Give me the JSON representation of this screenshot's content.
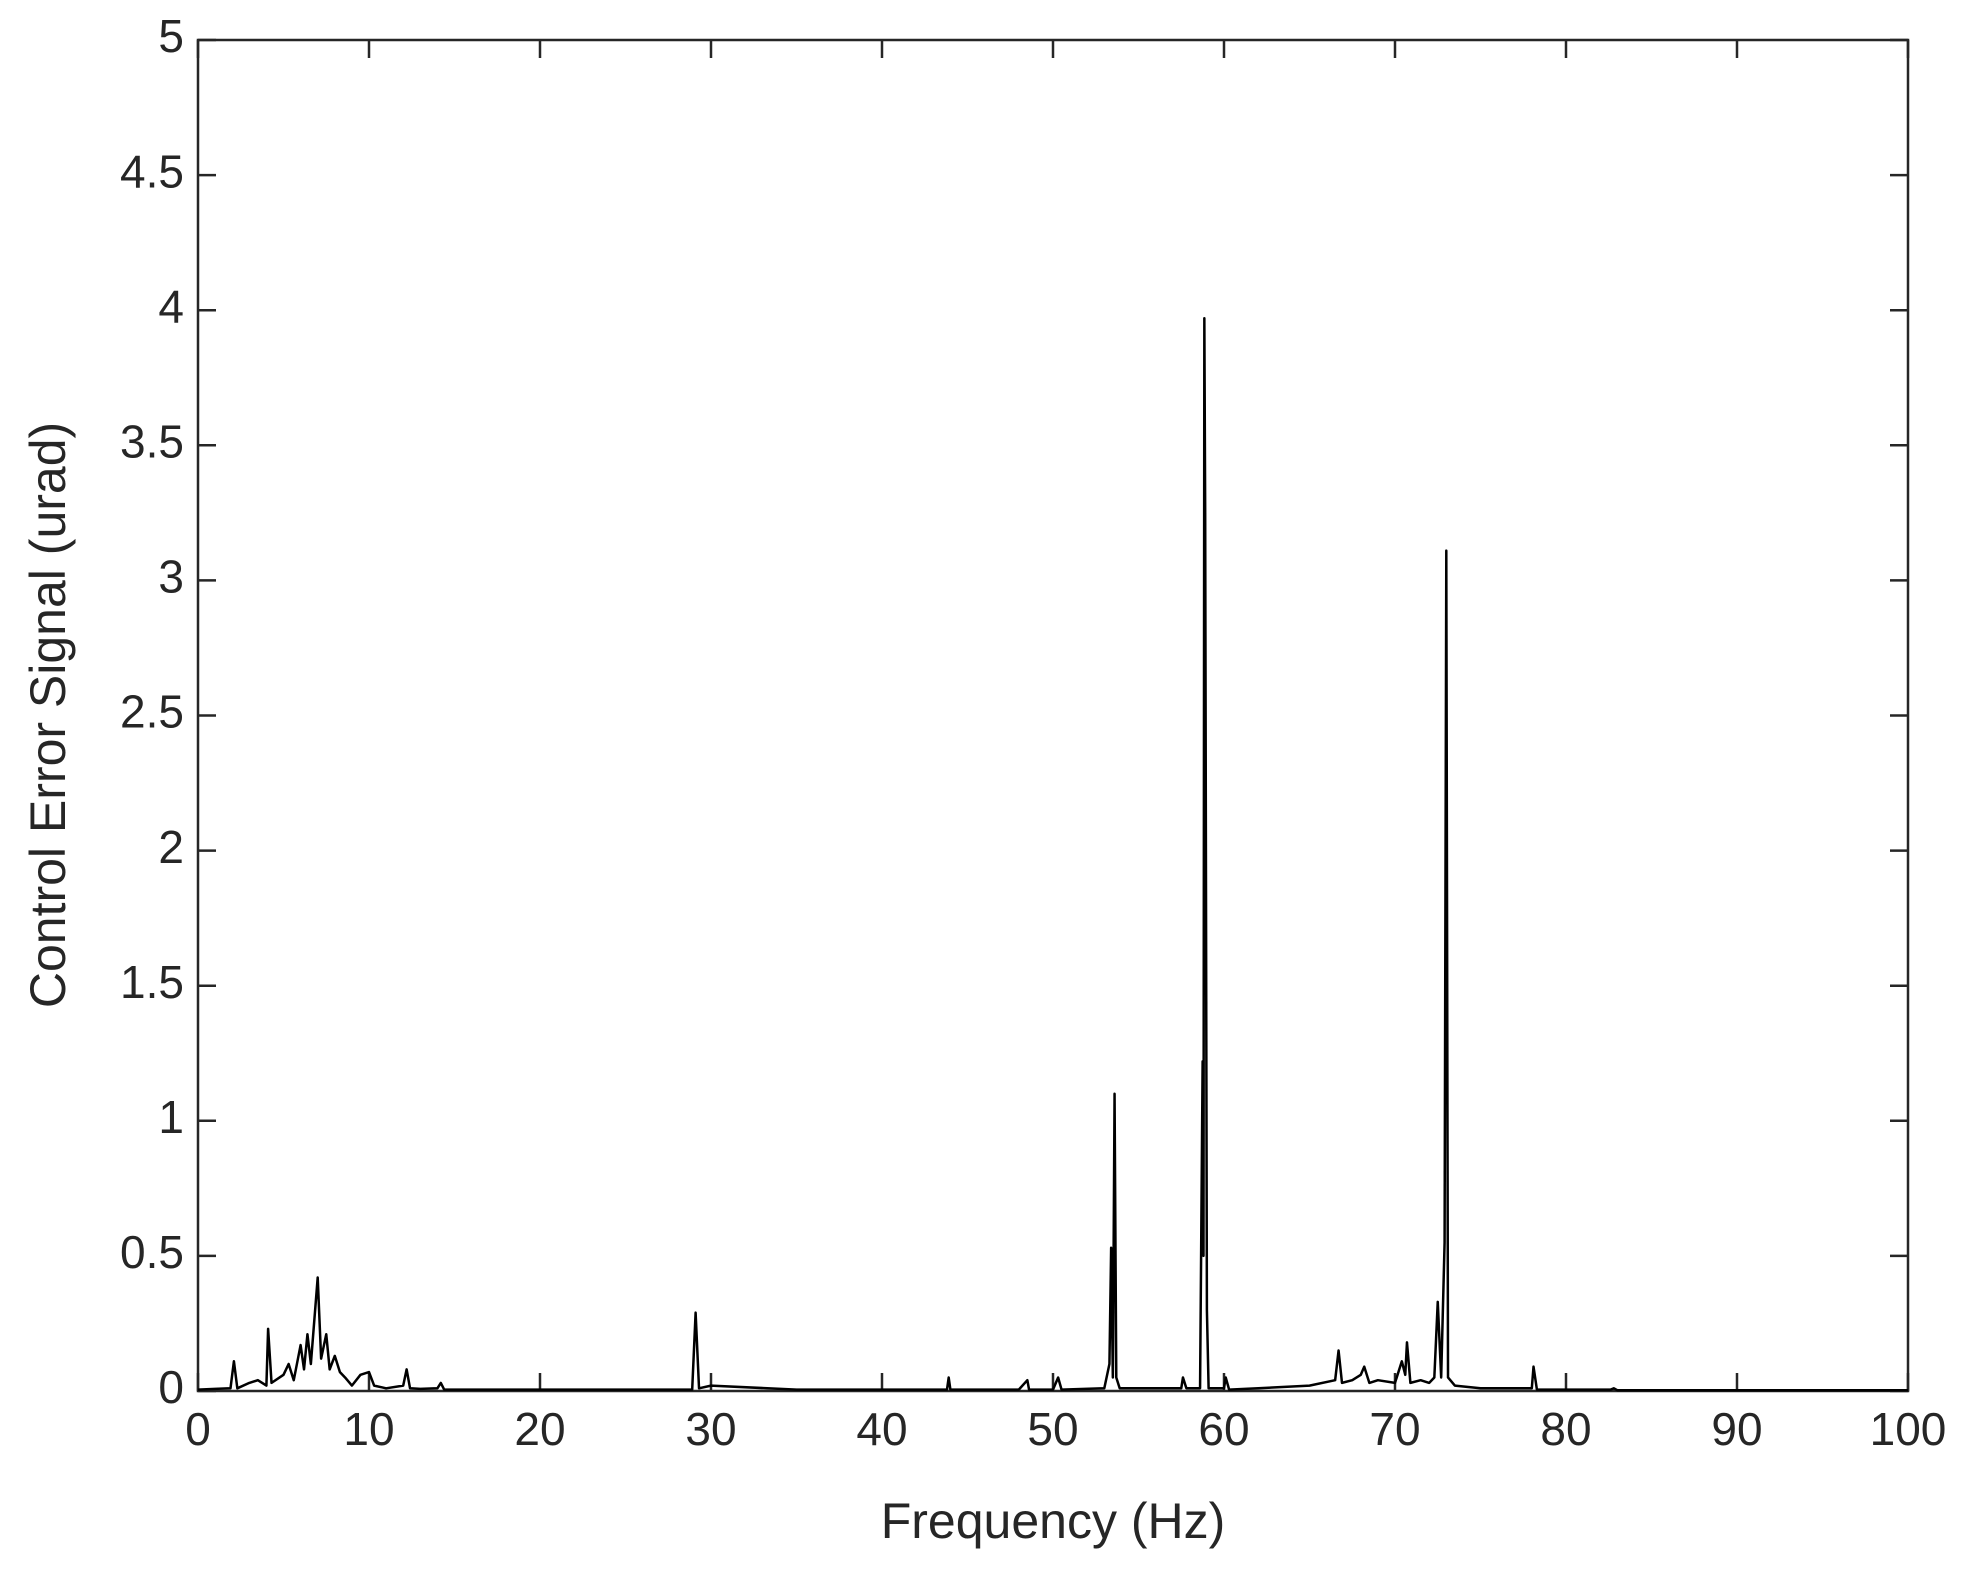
{
  "chart_data": {
    "type": "line",
    "xlabel": "Frequency (Hz)",
    "ylabel": "Control Error Signal (urad)",
    "xlim": [
      0,
      100
    ],
    "xticks": [
      0,
      10,
      20,
      30,
      40,
      50,
      60,
      70,
      80,
      90,
      100
    ],
    "ylim": [
      0,
      5
    ],
    "yticks": [
      0,
      0.5,
      1,
      1.5,
      2,
      2.5,
      3,
      3.5,
      4,
      4.5,
      5
    ],
    "grid": false,
    "series": [
      {
        "color": "#000000",
        "x": [
          0,
          1,
          1.9,
          2.1,
          2.3,
          3,
          3.5,
          4,
          4.1,
          4.3,
          5,
          5.3,
          5.6,
          6,
          6.2,
          6.4,
          6.6,
          7,
          7.2,
          7.5,
          7.7,
          8,
          8.3,
          8.6,
          9,
          9.5,
          10,
          10.3,
          11,
          12,
          12.2,
          12.4,
          13,
          14,
          14.2,
          14.4,
          20,
          25,
          28.9,
          29.1,
          29.3,
          30,
          35,
          40,
          43.8,
          43.9,
          44,
          48,
          48.5,
          48.6,
          50,
          50.3,
          50.5,
          53,
          53.3,
          53.4,
          53.5,
          53.6,
          53.7,
          53.9,
          56,
          57.5,
          57.6,
          57.8,
          58.6,
          58.75,
          58.8,
          58.85,
          58.9,
          59,
          59.1,
          60,
          60.1,
          60.3,
          62,
          65,
          66.5,
          66.7,
          66.9,
          67.5,
          68,
          68.2,
          68.5,
          69,
          70,
          70.4,
          70.6,
          70.7,
          70.9,
          71.5,
          72,
          72.3,
          72.5,
          72.7,
          72.9,
          73,
          73.1,
          73.5,
          75,
          78,
          78.1,
          78.3,
          80,
          82.6,
          82.8,
          83,
          90,
          100
        ],
        "values": [
          0.005,
          0.008,
          0.01,
          0.11,
          0.01,
          0.03,
          0.04,
          0.02,
          0.23,
          0.03,
          0.06,
          0.1,
          0.04,
          0.17,
          0.08,
          0.21,
          0.1,
          0.42,
          0.12,
          0.21,
          0.08,
          0.13,
          0.07,
          0.05,
          0.02,
          0.06,
          0.07,
          0.02,
          0.01,
          0.02,
          0.08,
          0.01,
          0.008,
          0.01,
          0.03,
          0.005,
          0.005,
          0.005,
          0.005,
          0.29,
          0.01,
          0.02,
          0.005,
          0.005,
          0.005,
          0.05,
          0.005,
          0.005,
          0.04,
          0.005,
          0.005,
          0.05,
          0.005,
          0.01,
          0.1,
          0.53,
          0.05,
          1.1,
          0.05,
          0.01,
          0.01,
          0.01,
          0.05,
          0.01,
          0.01,
          1.22,
          0.5,
          3.97,
          3.25,
          0.3,
          0.01,
          0.01,
          0.05,
          0.005,
          0.01,
          0.02,
          0.04,
          0.15,
          0.03,
          0.04,
          0.06,
          0.09,
          0.03,
          0.04,
          0.03,
          0.11,
          0.06,
          0.18,
          0.03,
          0.04,
          0.03,
          0.05,
          0.33,
          0.05,
          0.55,
          3.11,
          0.05,
          0.02,
          0.01,
          0.01,
          0.09,
          0.005,
          0.005,
          0.005,
          0.01,
          0.003,
          0.003,
          0.003
        ]
      }
    ]
  }
}
